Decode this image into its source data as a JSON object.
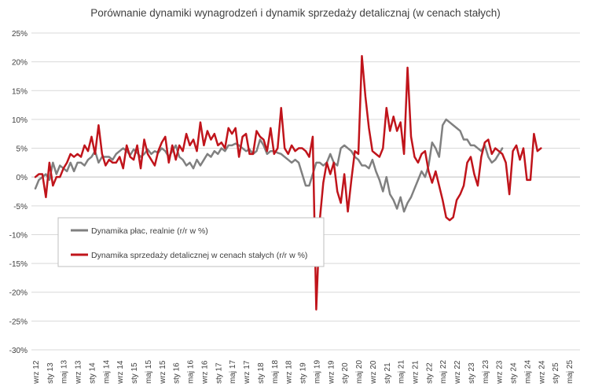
{
  "chart_data": {
    "type": "line",
    "title": "Porównanie dynamiki wynagrodzeń i dynamik sprzedaży detalicznaj (w cenach stałych)",
    "xlabel": "",
    "ylabel": "",
    "ylim": [
      -30,
      25
    ],
    "yticks": [
      25,
      20,
      15,
      10,
      5,
      0,
      -5,
      -10,
      -15,
      -20,
      -25,
      -30
    ],
    "ytick_labels": [
      "25%",
      "20%",
      "15%",
      "10%",
      "5%",
      "0%",
      "-5%",
      "-10%",
      "-15%",
      "-20%",
      "-25%",
      "-30%"
    ],
    "grid": true,
    "legend_position": "lower-left",
    "x_start": "2012-09",
    "x_end": "2025-07",
    "x_tick_labels": [
      "wrz 12",
      "sty 13",
      "maj 13",
      "wrz 13",
      "sty 14",
      "maj 14",
      "wrz 14",
      "sty 15",
      "maj 15",
      "wrz 15",
      "sty 16",
      "maj 16",
      "wrz 16",
      "sty 17",
      "maj 17",
      "wrz 17",
      "sty 18",
      "maj 18",
      "wrz 18",
      "sty 19",
      "maj 19",
      "wrz 19",
      "sty 20",
      "maj 20",
      "wrz 20",
      "sty 21",
      "maj 21",
      "wrz 21",
      "sty 22",
      "maj 22",
      "wrz 22",
      "sty 23",
      "maj 23",
      "wrz 23",
      "sty 24",
      "maj 24",
      "wrz 24",
      "sty 25",
      "maj 25"
    ],
    "series": [
      {
        "name": "Dynamika płac, realnie (r/r w %)",
        "color": "#808080",
        "values": [
          -2.0,
          -0.5,
          0.0,
          0.5,
          -0.5,
          2.5,
          0.5,
          2.0,
          1.5,
          1.0,
          2.5,
          1.0,
          2.5,
          2.5,
          2.0,
          3.0,
          3.5,
          4.5,
          2.5,
          3.5,
          3.5,
          3.5,
          3.0,
          4.0,
          4.5,
          5.0,
          4.5,
          3.8,
          4.8,
          4.2,
          3.5,
          4.0,
          4.8,
          4.0,
          4.5,
          4.2,
          5.0,
          4.5,
          3.5,
          4.5,
          5.5,
          3.5,
          3.0,
          2.0,
          2.5,
          1.5,
          3.0,
          2.0,
          3.0,
          4.0,
          3.5,
          4.5,
          4.0,
          5.0,
          4.5,
          5.5,
          5.5,
          5.8,
          5.5,
          5.0,
          4.5,
          4.8,
          4.0,
          4.5,
          6.5,
          5.5,
          4.0,
          4.5,
          4.5,
          4.2,
          4.0,
          3.5,
          3.0,
          2.5,
          3.0,
          2.5,
          0.5,
          -1.5,
          -1.5,
          0.5,
          2.5,
          2.5,
          2.0,
          2.5,
          4.0,
          2.5,
          2.0,
          5.0,
          5.5,
          5.0,
          4.5,
          3.5,
          3.0,
          2.0,
          2.0,
          1.5,
          3.0,
          1.0,
          -0.5,
          -2.5,
          0.0,
          -3.0,
          -4.0,
          -5.5,
          -3.5,
          -6.0,
          -4.5,
          -3.5,
          -2.0,
          -0.5,
          1.0,
          0.0,
          2.0,
          6.0,
          5.0,
          3.5,
          9.0,
          10.0,
          9.5,
          9.0,
          8.5,
          8.0,
          6.5,
          6.5,
          5.5,
          5.5,
          5.0,
          4.5,
          5.5,
          3.5,
          2.5,
          3.0,
          4.0,
          5.0
        ]
      },
      {
        "name": "Dynamika sprzedaży detalicznej w cenach stałych (r/r w %)",
        "color": "#C0141B",
        "values": [
          0.0,
          0.5,
          0.5,
          -3.5,
          2.5,
          -1.5,
          0.0,
          0.0,
          1.5,
          2.5,
          4.0,
          3.5,
          4.0,
          3.5,
          5.5,
          4.5,
          7.0,
          4.0,
          9.0,
          4.0,
          2.0,
          3.0,
          2.5,
          2.5,
          3.5,
          1.5,
          5.5,
          3.5,
          3.0,
          5.5,
          1.5,
          6.5,
          4.0,
          3.0,
          2.0,
          4.5,
          6.0,
          7.0,
          2.5,
          5.5,
          3.0,
          5.5,
          4.5,
          7.5,
          5.5,
          6.5,
          4.5,
          9.5,
          5.5,
          8.0,
          6.5,
          7.5,
          5.5,
          6.0,
          5.0,
          8.5,
          7.5,
          8.5,
          3.5,
          7.0,
          7.5,
          4.0,
          4.0,
          8.0,
          7.0,
          6.5,
          4.5,
          8.5,
          4.0,
          5.0,
          12.0,
          5.0,
          4.0,
          5.5,
          4.5,
          5.0,
          5.0,
          4.5,
          3.5,
          7.0,
          -23.0,
          -7.5,
          -1.0,
          2.5,
          0.5,
          2.5,
          -2.5,
          -4.5,
          0.5,
          -6.0,
          -0.5,
          4.5,
          4.0,
          21.0,
          14.0,
          8.5,
          4.5,
          4.0,
          3.5,
          5.0,
          12.0,
          8.0,
          10.5,
          8.0,
          9.5,
          4.0,
          19.0,
          7.0,
          3.5,
          2.5,
          4.0,
          4.5,
          1.0,
          -1.0,
          1.0,
          -1.5,
          -4.0,
          -7.0,
          -7.5,
          -7.0,
          -4.0,
          -3.0,
          -1.5,
          2.5,
          3.5,
          0.5,
          -1.5,
          3.5,
          6.0,
          6.5,
          4.0,
          5.0,
          4.5,
          4.0,
          2.5,
          -3.0,
          4.5,
          5.5,
          3.0,
          5.0,
          -0.5,
          -0.5,
          7.5,
          4.5,
          5.0
        ]
      }
    ]
  }
}
